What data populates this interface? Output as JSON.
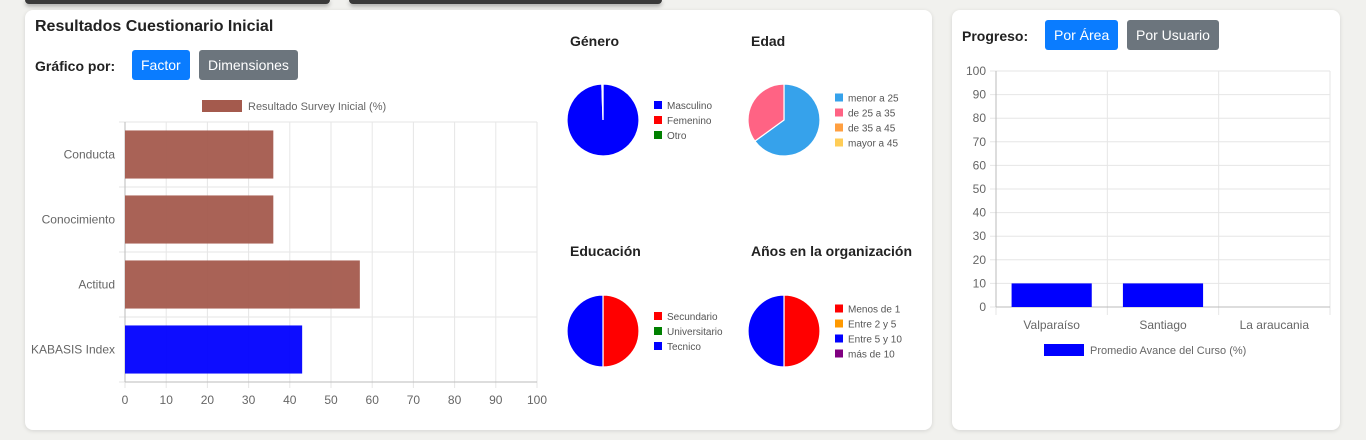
{
  "results": {
    "title": "Resultados Cuestionario Inicial",
    "grafico_label": "Gráfico por:",
    "factor_button": "Factor",
    "dimensiones_button": "Dimensiones"
  },
  "progress": {
    "title": "Progreso:",
    "por_area_button": "Por Área",
    "por_usuario_button": "Por Usuario"
  },
  "chart_data": [
    {
      "type": "bar",
      "orientation": "horizontal",
      "categories": [
        "Conducta",
        "Conocimiento",
        "Actitud",
        "KABASIS Index"
      ],
      "series": [
        {
          "name": "Resultado Survey Inicial (%)",
          "values": [
            36,
            36,
            57,
            43
          ]
        }
      ],
      "bar_colors": [
        "#a45a4d",
        "#a45a4d",
        "#a45a4d",
        "#0000ff"
      ],
      "xlim": [
        0,
        100
      ],
      "xticks": [
        0,
        10,
        20,
        30,
        40,
        50,
        60,
        70,
        80,
        90,
        100
      ],
      "legend": "top"
    },
    {
      "type": "pie",
      "title": "Género",
      "labels": [
        "Masculino",
        "Femenino",
        "Otro"
      ],
      "values": [
        99.5,
        0,
        0.5
      ],
      "colors": [
        "#0000ff",
        "#ff0000",
        "#008000"
      ],
      "legend": "right"
    },
    {
      "type": "pie",
      "title": "Edad",
      "labels": [
        "menor a 25",
        "de 25 a 35",
        "de 35 a 45",
        "mayor a 45"
      ],
      "values": [
        65,
        35,
        0,
        0
      ],
      "colors": [
        "#36a2eb",
        "#ff6384",
        "#ff9f40",
        "#ffcd56"
      ],
      "legend": "right"
    },
    {
      "type": "pie",
      "title": "Educación",
      "labels": [
        "Secundario",
        "Universitario",
        "Tecnico"
      ],
      "values": [
        50,
        0,
        50
      ],
      "colors": [
        "#ff0000",
        "#008000",
        "#0000ff"
      ],
      "legend": "right"
    },
    {
      "type": "pie",
      "title": "Años en la organización",
      "labels": [
        "Menos de 1",
        "Entre 2 y 5",
        "Entre 5 y 10",
        "más de 10"
      ],
      "values": [
        50,
        0,
        50,
        0
      ],
      "colors": [
        "#ff0000",
        "#ff9900",
        "#0000ff",
        "#800080"
      ],
      "legend": "right"
    },
    {
      "type": "bar",
      "orientation": "vertical",
      "categories": [
        "Valparaíso",
        "Santiago",
        "La araucania"
      ],
      "series": [
        {
          "name": "Promedio Avance del Curso (%)",
          "values": [
            10,
            10,
            0
          ]
        }
      ],
      "bar_colors": [
        "#0000ff",
        "#0000ff",
        "#0000ff"
      ],
      "ylim": [
        0,
        100
      ],
      "yticks": [
        0,
        10,
        20,
        30,
        40,
        50,
        60,
        70,
        80,
        90,
        100
      ],
      "legend": "bottom"
    }
  ]
}
